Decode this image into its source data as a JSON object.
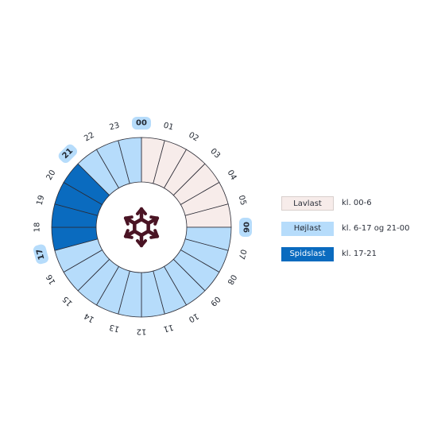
{
  "diagram": {
    "hour_labels": [
      "00",
      "01",
      "02",
      "03",
      "04",
      "05",
      "06",
      "07",
      "08",
      "09",
      "10",
      "11",
      "12",
      "13",
      "14",
      "15",
      "16",
      "17",
      "18",
      "19",
      "20",
      "21",
      "22",
      "23"
    ],
    "highlighted_hours": [
      "00",
      "06",
      "17",
      "21"
    ],
    "center_icon": "snowflake-icon"
  },
  "segments": {
    "tiers": [
      "lav",
      "lav",
      "lav",
      "lav",
      "lav",
      "lav",
      "hoj",
      "hoj",
      "hoj",
      "hoj",
      "hoj",
      "hoj",
      "hoj",
      "hoj",
      "hoj",
      "hoj",
      "hoj",
      "spids",
      "spids",
      "spids",
      "spids",
      "hoj",
      "hoj",
      "hoj"
    ]
  },
  "colors": {
    "lav": "#f7ecea",
    "hoj": "#b6dcfb",
    "spids": "#0a6bbf",
    "border": "#2b2b35",
    "highlight_pill": "#b6dcfb",
    "icon": "#4a1424"
  },
  "legend": [
    {
      "label": "Lavlast",
      "range": "kl. 00-6",
      "tier": "lav"
    },
    {
      "label": "Højlast",
      "range": "kl. 6-17 og 21-00",
      "tier": "hoj"
    },
    {
      "label": "Spidslast",
      "range": "kl. 17-21",
      "tier": "spids"
    }
  ]
}
